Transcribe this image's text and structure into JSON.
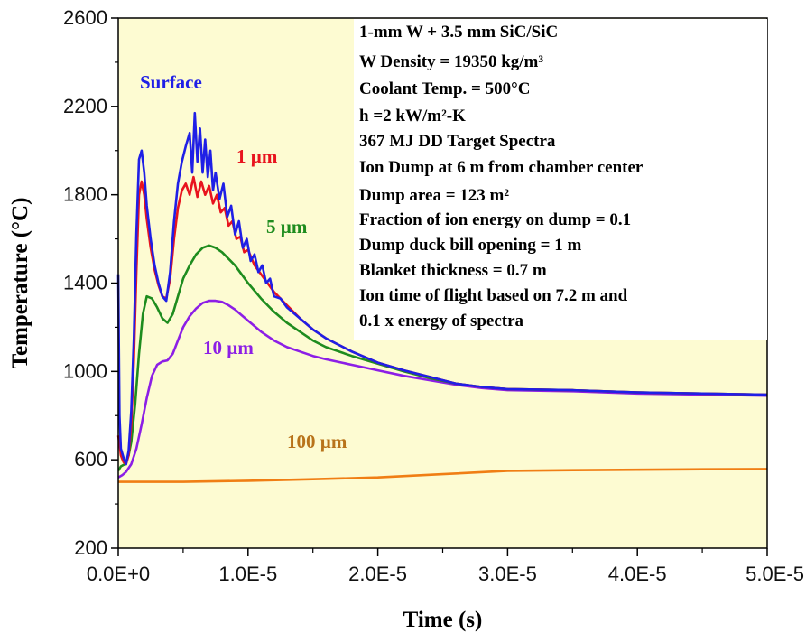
{
  "chart_data": {
    "type": "line",
    "xlabel": "Time (s)",
    "ylabel": "Temperature (°C)",
    "xlim": [
      0,
      5e-05
    ],
    "ylim": [
      200,
      2600
    ],
    "x_tick_values": [
      0,
      1e-05,
      2e-05,
      3e-05,
      4e-05,
      5e-05
    ],
    "x_tick_labels": [
      "0.0E+0",
      "1.0E-5",
      "2.0E-5",
      "3.0E-5",
      "4.0E-5",
      "5.0E-5"
    ],
    "y_tick_values": [
      200,
      600,
      1000,
      1400,
      1800,
      2200,
      2600
    ],
    "y_tick_labels": [
      "200",
      "600",
      "1000",
      "1400",
      "1800",
      "2200",
      "2600"
    ],
    "background_color": "#fdfbd2",
    "grid": false,
    "series": [
      {
        "name": "Surface",
        "label_text": "Surface",
        "color": "#1f1fe6",
        "x": [
          0,
          1e-07,
          2e-07,
          4e-07,
          6e-07,
          8e-07,
          1e-06,
          1.2e-06,
          1.4e-06,
          1.6e-06,
          1.8e-06,
          2e-06,
          2.2e-06,
          2.5e-06,
          2.8e-06,
          3.1e-06,
          3.4e-06,
          3.7e-06,
          4e-06,
          4.3e-06,
          4.6e-06,
          4.9e-06,
          5.2e-06,
          5.5e-06,
          5.7e-06,
          5.9e-06,
          6.1e-06,
          6.3e-06,
          6.5e-06,
          6.7e-06,
          6.9e-06,
          7.1e-06,
          7.3e-06,
          7.5e-06,
          7.8e-06,
          8.1e-06,
          8.4e-06,
          8.7e-06,
          9e-06,
          9.3e-06,
          9.6e-06,
          9.9e-06,
          1.02e-05,
          1.05e-05,
          1.08e-05,
          1.11e-05,
          1.14e-05,
          1.17e-05,
          1.2e-05,
          1.25e-05,
          1.3e-05,
          1.4e-05,
          1.5e-05,
          1.6e-05,
          1.7e-05,
          1.8e-05,
          2e-05,
          2.2e-05,
          2.4e-05,
          2.6e-05,
          2.8e-05,
          3e-05,
          3.5e-05,
          4e-05,
          4.5e-05,
          5e-05
        ],
        "y": [
          1440,
          800,
          650,
          610,
          580,
          640,
          820,
          1150,
          1620,
          1960,
          2000,
          1900,
          1750,
          1600,
          1480,
          1400,
          1340,
          1320,
          1450,
          1680,
          1850,
          1950,
          2020,
          2080,
          1900,
          2170,
          1950,
          2100,
          1900,
          2050,
          1880,
          2000,
          1820,
          1900,
          1780,
          1850,
          1700,
          1750,
          1620,
          1680,
          1560,
          1600,
          1500,
          1530,
          1450,
          1480,
          1400,
          1420,
          1340,
          1330,
          1290,
          1240,
          1190,
          1150,
          1120,
          1090,
          1040,
          1005,
          975,
          945,
          930,
          920,
          915,
          905,
          900,
          895
        ]
      },
      {
        "name": "1 µm",
        "label_text": "1 µm",
        "color": "#e8141e",
        "x": [
          0,
          1e-07,
          2e-07,
          4e-07,
          6e-07,
          8e-07,
          1e-06,
          1.2e-06,
          1.4e-06,
          1.6e-06,
          1.8e-06,
          2e-06,
          2.2e-06,
          2.5e-06,
          2.8e-06,
          3.1e-06,
          3.4e-06,
          3.7e-06,
          4e-06,
          4.3e-06,
          4.6e-06,
          4.9e-06,
          5.2e-06,
          5.5e-06,
          5.8e-06,
          6.1e-06,
          6.4e-06,
          6.7e-06,
          7e-06,
          7.3e-06,
          7.6e-06,
          7.9e-06,
          8.2e-06,
          8.5e-06,
          8.8e-06,
          9.1e-06,
          9.4e-06,
          9.7e-06,
          1e-05,
          1.05e-05,
          1.1e-05,
          1.15e-05,
          1.2e-05,
          1.3e-05,
          1.4e-05,
          1.5e-05,
          1.6e-05,
          1.7e-05,
          1.8e-05,
          2e-05,
          2.2e-05,
          2.4e-05,
          2.6e-05,
          2.8e-05,
          3e-05,
          3.5e-05,
          4e-05,
          4.5e-05,
          5e-05
        ],
        "y": [
          710,
          670,
          620,
          590,
          580,
          620,
          760,
          1050,
          1450,
          1800,
          1860,
          1800,
          1690,
          1560,
          1460,
          1390,
          1340,
          1330,
          1420,
          1600,
          1740,
          1820,
          1850,
          1800,
          1880,
          1790,
          1860,
          1800,
          1840,
          1760,
          1800,
          1720,
          1740,
          1660,
          1680,
          1600,
          1610,
          1540,
          1550,
          1480,
          1440,
          1400,
          1360,
          1300,
          1240,
          1190,
          1150,
          1120,
          1090,
          1040,
          1005,
          975,
          945,
          930,
          920,
          915,
          905,
          900,
          895
        ]
      },
      {
        "name": "5 µm",
        "label_text": "5 µm",
        "color": "#1e8c1e",
        "x": [
          0,
          2e-07,
          5e-07,
          8e-07,
          1e-06,
          1.3e-06,
          1.6e-06,
          1.9e-06,
          2.2e-06,
          2.6e-06,
          3e-06,
          3.4e-06,
          3.8e-06,
          4.2e-06,
          4.6e-06,
          5e-06,
          5.5e-06,
          6e-06,
          6.5e-06,
          7e-06,
          7.5e-06,
          8e-06,
          8.5e-06,
          9e-06,
          9.5e-06,
          1e-05,
          1.1e-05,
          1.2e-05,
          1.3e-05,
          1.4e-05,
          1.5e-05,
          1.6e-05,
          1.8e-05,
          2e-05,
          2.2e-05,
          2.4e-05,
          2.6e-05,
          2.8e-05,
          3e-05,
          3.5e-05,
          4e-05,
          4.5e-05,
          5e-05
        ],
        "y": [
          550,
          570,
          580,
          620,
          680,
          850,
          1080,
          1260,
          1340,
          1330,
          1290,
          1240,
          1220,
          1260,
          1340,
          1420,
          1480,
          1530,
          1560,
          1570,
          1560,
          1540,
          1510,
          1480,
          1440,
          1400,
          1330,
          1270,
          1220,
          1180,
          1140,
          1110,
          1070,
          1035,
          1000,
          970,
          945,
          930,
          920,
          915,
          905,
          900,
          895
        ]
      },
      {
        "name": "10 µm",
        "label_text": "10 µm",
        "color": "#8c1ee6",
        "x": [
          0,
          3e-07,
          6e-07,
          1e-06,
          1.4e-06,
          1.8e-06,
          2.2e-06,
          2.6e-06,
          3e-06,
          3.4e-06,
          3.8e-06,
          4.2e-06,
          4.6e-06,
          5e-06,
          5.5e-06,
          6e-06,
          6.5e-06,
          7e-06,
          7.5e-06,
          8e-06,
          8.5e-06,
          9e-06,
          9.5e-06,
          1e-05,
          1.1e-05,
          1.2e-05,
          1.3e-05,
          1.4e-05,
          1.5e-05,
          1.6e-05,
          1.8e-05,
          2e-05,
          2.2e-05,
          2.4e-05,
          2.6e-05,
          2.8e-05,
          3e-05,
          3.5e-05,
          4e-05,
          4.5e-05,
          5e-05
        ],
        "y": [
          520,
          530,
          545,
          580,
          650,
          760,
          880,
          980,
          1030,
          1045,
          1050,
          1080,
          1140,
          1200,
          1250,
          1285,
          1310,
          1320,
          1320,
          1315,
          1300,
          1280,
          1255,
          1230,
          1180,
          1140,
          1110,
          1090,
          1070,
          1055,
          1030,
          1005,
          980,
          960,
          940,
          925,
          915,
          910,
          900,
          895,
          890
        ]
      },
      {
        "name": "100 µm",
        "label_text": "100 µm",
        "color": "#f07e14",
        "x": [
          0,
          5e-06,
          1e-05,
          1.5e-05,
          2e-05,
          2.5e-05,
          3e-05,
          3.5e-05,
          4e-05,
          4.5e-05,
          5e-05
        ],
        "y": [
          500,
          500,
          505,
          512,
          520,
          535,
          550,
          553,
          555,
          557,
          558
        ]
      }
    ],
    "series_label_colors": {
      "Surface": "#1f1fe6",
      "1 µm": "#e8141e",
      "5 µm": "#1e8c1e",
      "10 µm": "#8c1ee6",
      "100 µm": "#b8731a"
    },
    "annotation": {
      "box_color": "#ffffff",
      "lines": [
        "1-mm W + 3.5 mm SiC/SiC",
        "W Density = 19350 kg/m³",
        "Coolant Temp. = 500°C",
        "h =2 kW/m²-K",
        "367 MJ DD Target Spectra",
        "Ion Dump at 6 m from chamber center",
        "Dump area = 123 m²",
        "Fraction of ion energy on dump = 0.1",
        "Dump duck bill opening = 1 m",
        "Blanket thickness = 0.7 m",
        "Ion time of flight based on 7.2 m and",
        "0.1 x energy of spectra"
      ]
    }
  }
}
